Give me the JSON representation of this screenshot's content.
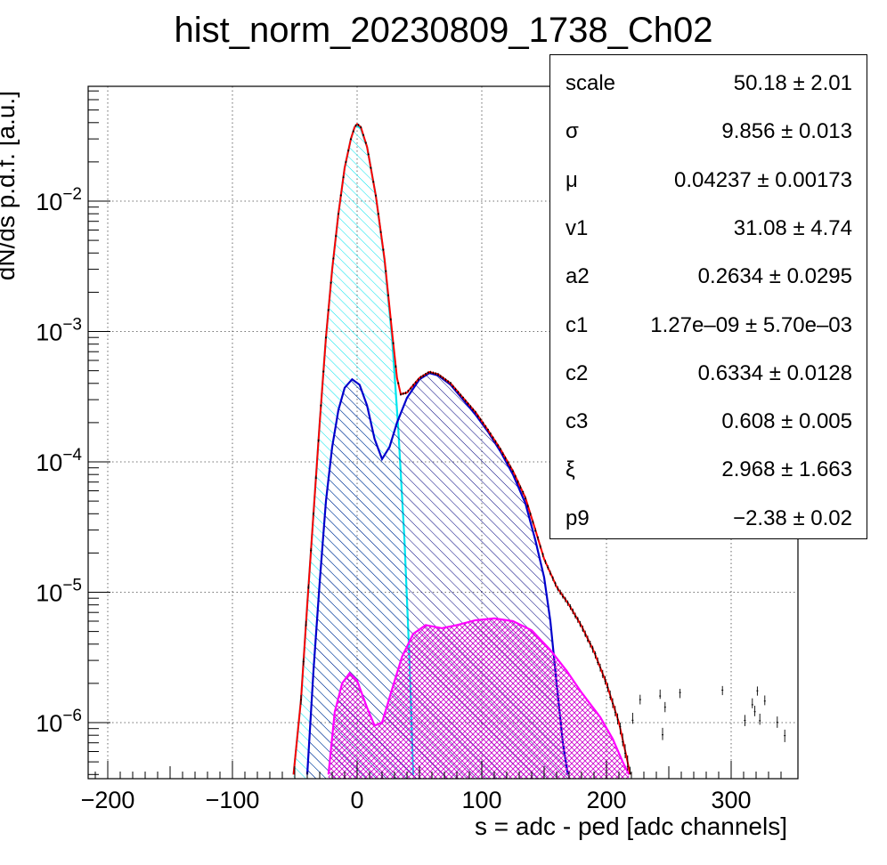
{
  "chart_data": {
    "type": "line",
    "title": "hist_norm_20230809_1738_Ch02",
    "xlabel": "s = adc - ped [adc channels]",
    "ylabel": "dN/ds p.d.f. [a.u.]",
    "xlim": [
      -215,
      350
    ],
    "ylim": [
      4e-07,
      0.075
    ],
    "log_y": true,
    "grid": true,
    "x_ticks": [
      {
        "value": -200,
        "label": "−200"
      },
      {
        "value": -100,
        "label": "−100"
      },
      {
        "value": 0,
        "label": "0"
      },
      {
        "value": 100,
        "label": "100"
      },
      {
        "value": 200,
        "label": "200"
      },
      {
        "value": 300,
        "label": "300"
      }
    ],
    "y_ticks": [
      {
        "value": 1e-06,
        "base": "10",
        "exp": "−6"
      },
      {
        "value": 1e-05,
        "base": "10",
        "exp": "−5"
      },
      {
        "value": 0.0001,
        "base": "10",
        "exp": "−4"
      },
      {
        "value": 0.001,
        "base": "10",
        "exp": "−3"
      },
      {
        "value": 0.01,
        "base": "10",
        "exp": "−2"
      }
    ],
    "series": [
      {
        "color": "#00e5ee",
        "fill": "hatch",
        "points": [
          [
            -51,
            4e-07
          ],
          [
            -45,
            1.5e-06
          ],
          [
            -40,
            8e-06
          ],
          [
            -35,
            4e-05
          ],
          [
            -30,
            0.0002
          ],
          [
            -25,
            0.0009
          ],
          [
            -20,
            0.003
          ],
          [
            -15,
            0.008
          ],
          [
            -10,
            0.018
          ],
          [
            -5,
            0.03
          ],
          [
            -2,
            0.037
          ],
          [
            0,
            0.038
          ],
          [
            3,
            0.036
          ],
          [
            8,
            0.026
          ],
          [
            15,
            0.011
          ],
          [
            22,
            0.0035
          ],
          [
            28,
            0.0009
          ],
          [
            33,
            0.00018
          ],
          [
            38,
            2.5e-05
          ],
          [
            42,
            3e-06
          ],
          [
            45,
            4e-07
          ]
        ]
      },
      {
        "color": "#0000cc",
        "fill": "hatch",
        "points": [
          [
            -40,
            4e-07
          ],
          [
            -35,
            2.5e-06
          ],
          [
            -30,
            1.2e-05
          ],
          [
            -25,
            5e-05
          ],
          [
            -20,
            0.00013
          ],
          [
            -15,
            0.00025
          ],
          [
            -10,
            0.00037
          ],
          [
            -4,
            0.00043
          ],
          [
            2,
            0.00039
          ],
          [
            8,
            0.00027
          ],
          [
            14,
            0.00015
          ],
          [
            20,
            0.000105
          ],
          [
            26,
            0.00013
          ],
          [
            32,
            0.0002
          ],
          [
            40,
            0.00031
          ],
          [
            50,
            0.00043
          ],
          [
            58,
            0.00048
          ],
          [
            65,
            0.00046
          ],
          [
            75,
            0.00039
          ],
          [
            85,
            0.0003
          ],
          [
            95,
            0.00023
          ],
          [
            105,
            0.00017
          ],
          [
            115,
            0.00012
          ],
          [
            125,
            8e-05
          ],
          [
            135,
            4.8e-05
          ],
          [
            143,
            2.5e-05
          ],
          [
            150,
            1.3e-05
          ],
          [
            155,
            6e-06
          ],
          [
            160,
            2e-06
          ],
          [
            165,
            7e-07
          ],
          [
            169,
            4e-07
          ]
        ]
      },
      {
        "color": "#ff00ff",
        "fill": "crosshatch",
        "points": [
          [
            -23,
            4e-07
          ],
          [
            -18,
            1.2e-06
          ],
          [
            -12,
            2e-06
          ],
          [
            -6,
            2.4e-06
          ],
          [
            0,
            2.1e-06
          ],
          [
            8,
            1.3e-06
          ],
          [
            14,
            9.5e-07
          ],
          [
            20,
            1e-06
          ],
          [
            28,
            1.8e-06
          ],
          [
            36,
            3.2e-06
          ],
          [
            45,
            4.8e-06
          ],
          [
            55,
            5.6e-06
          ],
          [
            68,
            5.3e-06
          ],
          [
            80,
            5.6e-06
          ],
          [
            95,
            6.1e-06
          ],
          [
            110,
            6.3e-06
          ],
          [
            125,
            6e-06
          ],
          [
            140,
            5.1e-06
          ],
          [
            155,
            3.6e-06
          ],
          [
            168,
            2.5e-06
          ],
          [
            180,
            1.7e-06
          ],
          [
            195,
            1.1e-06
          ],
          [
            205,
            7.5e-07
          ],
          [
            213,
            5e-07
          ],
          [
            218,
            4e-07
          ]
        ]
      },
      {
        "color": "#ff0000",
        "fill": "none",
        "points": [
          [
            -51,
            4e-07
          ],
          [
            -45,
            1.5e-06
          ],
          [
            -40,
            8e-06
          ],
          [
            -35,
            4e-05
          ],
          [
            -30,
            0.0002
          ],
          [
            -25,
            0.0009
          ],
          [
            -20,
            0.003
          ],
          [
            -15,
            0.008
          ],
          [
            -10,
            0.018
          ],
          [
            -5,
            0.03
          ],
          [
            -2,
            0.037
          ],
          [
            0,
            0.039
          ],
          [
            3,
            0.037
          ],
          [
            8,
            0.026
          ],
          [
            15,
            0.011
          ],
          [
            22,
            0.0036
          ],
          [
            28,
            0.001
          ],
          [
            32,
            0.00044
          ],
          [
            35,
            0.00033
          ],
          [
            40,
            0.00034
          ],
          [
            50,
            0.00044
          ],
          [
            58,
            0.00049
          ],
          [
            65,
            0.00047
          ],
          [
            75,
            0.0004
          ],
          [
            85,
            0.00031
          ],
          [
            95,
            0.00024
          ],
          [
            105,
            0.000175
          ],
          [
            115,
            0.000125
          ],
          [
            125,
            8.5e-05
          ],
          [
            135,
            5.3e-05
          ],
          [
            143,
            3e-05
          ],
          [
            150,
            1.8e-05
          ],
          [
            160,
            1.1e-05
          ],
          [
            170,
            8e-06
          ],
          [
            180,
            5.5e-06
          ],
          [
            190,
            3.5e-06
          ],
          [
            200,
            2e-06
          ],
          [
            210,
            1e-06
          ],
          [
            216,
            5.5e-07
          ],
          [
            219,
            4e-07
          ]
        ]
      }
    ]
  },
  "stats": {
    "rows": [
      {
        "name": "scale",
        "value": "50.18 ± 2.01"
      },
      {
        "name": "σ",
        "value": "9.856 ± 0.013"
      },
      {
        "name": "μ",
        "value": "0.04237 ± 0.00173"
      },
      {
        "name": "v1",
        "value": "31.08 ± 4.74"
      },
      {
        "name": "a2",
        "value": "0.2634 ± 0.0295"
      },
      {
        "name": "c1",
        "value": "1.27e–09 ± 5.70e–03"
      },
      {
        "name": "c2",
        "value": "0.6334 ± 0.0128"
      },
      {
        "name": "c3",
        "value": "0.608 ± 0.005"
      },
      {
        "name": "ξ",
        "value": "2.968 ± 1.663"
      },
      {
        "name": "p9",
        "value": "−2.38 ± 0.02"
      }
    ]
  }
}
